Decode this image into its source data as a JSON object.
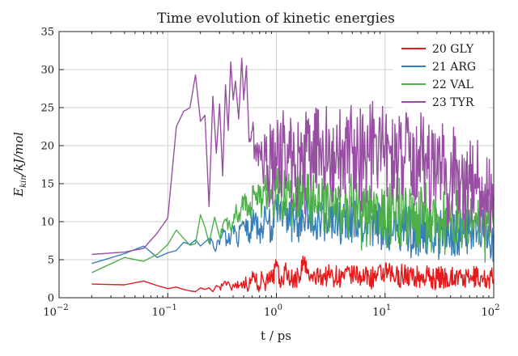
{
  "chart_data": {
    "type": "line",
    "title": "Time evolution of kinetic energies",
    "xlabel": "t / ps",
    "ylabel_parts": {
      "base": "E",
      "sub": "kin",
      "rest": "/kJ/mol"
    },
    "xscale": "log",
    "xlim": [
      0.01,
      100
    ],
    "ylim": [
      0,
      35
    ],
    "x_ticks": [
      {
        "value": 0.01,
        "base": "10",
        "exp": "−2"
      },
      {
        "value": 0.1,
        "base": "10",
        "exp": "−1"
      },
      {
        "value": 1,
        "base": "10",
        "exp": "0"
      },
      {
        "value": 10,
        "base": "10",
        "exp": "1"
      },
      {
        "value": 100,
        "base": "10",
        "exp": "2"
      }
    ],
    "y_ticks": [
      0,
      5,
      10,
      15,
      20,
      25,
      30,
      35
    ],
    "grid": true,
    "legend_position": "top-right",
    "series": [
      {
        "name": "20 GLY",
        "color": "#e41a1c",
        "x": [
          0.02,
          0.04,
          0.06,
          0.08,
          0.1,
          0.12,
          0.14,
          0.16,
          0.18,
          0.2,
          0.22,
          0.24,
          0.26,
          0.28,
          0.3,
          0.34,
          0.38,
          0.42,
          0.46,
          0.5,
          0.56,
          0.62,
          0.68,
          0.74,
          0.8,
          0.86,
          0.92,
          1.0,
          1.1,
          1.2,
          1.4,
          1.6,
          1.8,
          2.0,
          2.5,
          3,
          4,
          5,
          6,
          8,
          10,
          12,
          15,
          20,
          25,
          30,
          40,
          50,
          60,
          70,
          80,
          90,
          100
        ],
        "y": [
          1.8,
          1.7,
          2.2,
          1.6,
          1.2,
          1.4,
          1.1,
          0.9,
          0.8,
          1.3,
          1.1,
          1.3,
          0.8,
          1.6,
          1.4,
          2.1,
          1.3,
          1.9,
          1.6,
          2.2,
          1.4,
          3.2,
          1.6,
          2.9,
          1.8,
          3.4,
          2.1,
          4.2,
          1.5,
          3.6,
          2.2,
          2.9,
          4.6,
          2.5,
          2.8,
          3.0,
          2.7,
          3.1,
          2.9,
          2.6,
          3.3,
          2.7,
          3.0,
          2.6,
          2.8,
          2.5,
          2.7,
          2.6,
          2.4,
          2.7,
          2.5,
          2.6,
          2.4
        ],
        "spread": [
          0,
          0,
          0,
          0,
          0,
          0,
          0,
          0,
          0,
          0,
          0,
          0,
          0,
          0,
          0,
          0.5,
          0.6,
          0.7,
          0.8,
          0.9,
          1.0,
          1.1,
          1.2,
          1.2,
          1.2,
          1.3,
          1.3,
          1.4,
          1.4,
          1.4,
          1.5,
          1.5,
          1.5,
          1.5,
          1.5,
          1.5,
          1.5,
          1.5,
          1.5,
          1.6,
          1.6,
          1.6,
          1.6,
          1.6,
          1.6,
          1.6,
          1.6,
          1.6,
          1.6,
          1.6,
          1.6,
          1.6,
          1.6
        ]
      },
      {
        "name": "21 ARG",
        "color": "#377eb8",
        "x": [
          0.02,
          0.04,
          0.06,
          0.08,
          0.1,
          0.12,
          0.14,
          0.16,
          0.18,
          0.2,
          0.24,
          0.28,
          0.32,
          0.36,
          0.4,
          0.45,
          0.5,
          0.56,
          0.62,
          0.7,
          0.8,
          0.9,
          1.0,
          1.2,
          1.5,
          2,
          2.5,
          3,
          4,
          5,
          6,
          8,
          10,
          12,
          15,
          20,
          25,
          30,
          40,
          50,
          60,
          70,
          80,
          90,
          100
        ],
        "y": [
          4.5,
          5.8,
          6.8,
          5.3,
          5.9,
          6.2,
          7.3,
          7.0,
          7.6,
          6.8,
          7.8,
          6.5,
          8.5,
          7.2,
          9.3,
          7.6,
          10.0,
          8.4,
          10.2,
          9.1,
          10.5,
          9.4,
          11.5,
          10.8,
          10.3,
          10.9,
          10.0,
          10.3,
          9.7,
          10.0,
          9.5,
          9.8,
          9.3,
          9.1,
          9.0,
          8.8,
          8.7,
          8.6,
          8.5,
          8.4,
          8.5,
          8.3,
          8.2,
          8.4,
          8.3
        ],
        "spread": [
          0,
          0,
          0,
          0,
          0,
          0,
          0,
          0,
          0,
          0,
          0,
          0.6,
          0.8,
          1.0,
          1.2,
          1.4,
          1.6,
          1.8,
          2.0,
          2.2,
          2.4,
          2.6,
          2.8,
          3.0,
          3.2,
          3.3,
          3.4,
          3.5,
          3.5,
          3.6,
          3.6,
          3.6,
          3.7,
          3.7,
          3.7,
          3.7,
          3.7,
          3.7,
          3.7,
          3.7,
          3.7,
          3.7,
          3.7,
          3.7,
          3.7
        ]
      },
      {
        "name": "22 VAL",
        "color": "#4daf4a",
        "x": [
          0.02,
          0.04,
          0.06,
          0.08,
          0.1,
          0.12,
          0.14,
          0.16,
          0.18,
          0.2,
          0.22,
          0.24,
          0.27,
          0.3,
          0.34,
          0.38,
          0.42,
          0.46,
          0.5,
          0.56,
          0.62,
          0.7,
          0.8,
          0.9,
          1.0,
          1.2,
          1.5,
          2,
          2.5,
          3,
          4,
          5,
          6,
          8,
          10,
          12,
          15,
          20,
          25,
          30,
          40,
          50,
          60,
          70,
          80,
          90,
          100
        ],
        "y": [
          3.3,
          5.3,
          4.8,
          5.7,
          7.0,
          8.9,
          7.8,
          6.9,
          7.1,
          10.9,
          9.3,
          7.2,
          10.6,
          8.0,
          10.3,
          9.0,
          11.2,
          10.1,
          13.2,
          11.8,
          13.6,
          12.5,
          14.1,
          13.0,
          14.3,
          13.5,
          12.5,
          13.2,
          12.0,
          12.8,
          11.5,
          12.4,
          11.0,
          11.6,
          10.8,
          11.2,
          10.5,
          10.9,
          10.2,
          10.6,
          9.9,
          10.3,
          9.6,
          10.0,
          9.5,
          9.8,
          9.2
        ],
        "spread": [
          0,
          0,
          0,
          0,
          0,
          0,
          0,
          0,
          0,
          0,
          0,
          0,
          0,
          0,
          0.6,
          0.8,
          1.0,
          1.3,
          1.6,
          2.0,
          2.4,
          2.8,
          3.2,
          3.4,
          3.6,
          3.8,
          4.0,
          4.2,
          4.3,
          4.4,
          4.5,
          4.6,
          4.7,
          4.8,
          4.8,
          4.9,
          4.9,
          5.0,
          5.0,
          5.0,
          5.0,
          5.0,
          5.0,
          5.0,
          5.0,
          5.0,
          5.0
        ]
      },
      {
        "name": "23 TYR",
        "color": "#984ea3",
        "x": [
          0.02,
          0.04,
          0.06,
          0.08,
          0.1,
          0.12,
          0.14,
          0.16,
          0.18,
          0.2,
          0.22,
          0.24,
          0.26,
          0.28,
          0.3,
          0.32,
          0.34,
          0.36,
          0.38,
          0.4,
          0.42,
          0.45,
          0.48,
          0.5,
          0.53,
          0.56,
          0.6,
          0.65,
          0.7,
          0.75,
          0.8,
          0.9,
          1.0,
          1.2,
          1.5,
          2,
          2.5,
          3,
          4,
          5,
          6,
          7,
          8,
          10,
          12,
          15,
          20,
          25,
          30,
          40,
          50,
          60,
          70,
          80,
          90,
          100
        ],
        "y": [
          5.7,
          6.0,
          6.5,
          8.5,
          10.5,
          22.5,
          24.5,
          25.0,
          29.3,
          23.2,
          24.0,
          12.0,
          26.5,
          19.0,
          25.5,
          16.0,
          28.0,
          22.0,
          31.0,
          26.0,
          28.5,
          23.5,
          31.5,
          26.0,
          30.5,
          20.5,
          22.0,
          18.0,
          19.5,
          16.5,
          18.0,
          17.0,
          18.5,
          19.0,
          17.5,
          18.0,
          19.5,
          18.0,
          18.5,
          19.0,
          18.0,
          18.5,
          21.0,
          19.0,
          18.0,
          18.5,
          17.5,
          17.0,
          16.5,
          16.0,
          15.5,
          15.0,
          14.5,
          14.0,
          13.5,
          13.0
        ],
        "spread": [
          0,
          0,
          0,
          0,
          0,
          0,
          0,
          0,
          0,
          0,
          0,
          0,
          0,
          0,
          0,
          0,
          0,
          0,
          0,
          0,
          0,
          0,
          0,
          0,
          0,
          0.5,
          1.0,
          2.0,
          3.0,
          4.0,
          5.0,
          6.0,
          6.5,
          6.8,
          7.0,
          7.0,
          7.0,
          7.0,
          7.0,
          7.0,
          7.0,
          7.0,
          7.0,
          7.0,
          7.0,
          7.0,
          7.0,
          7.0,
          7.0,
          7.0,
          7.0,
          7.0,
          7.0,
          7.0,
          7.0,
          7.0
        ]
      }
    ]
  }
}
